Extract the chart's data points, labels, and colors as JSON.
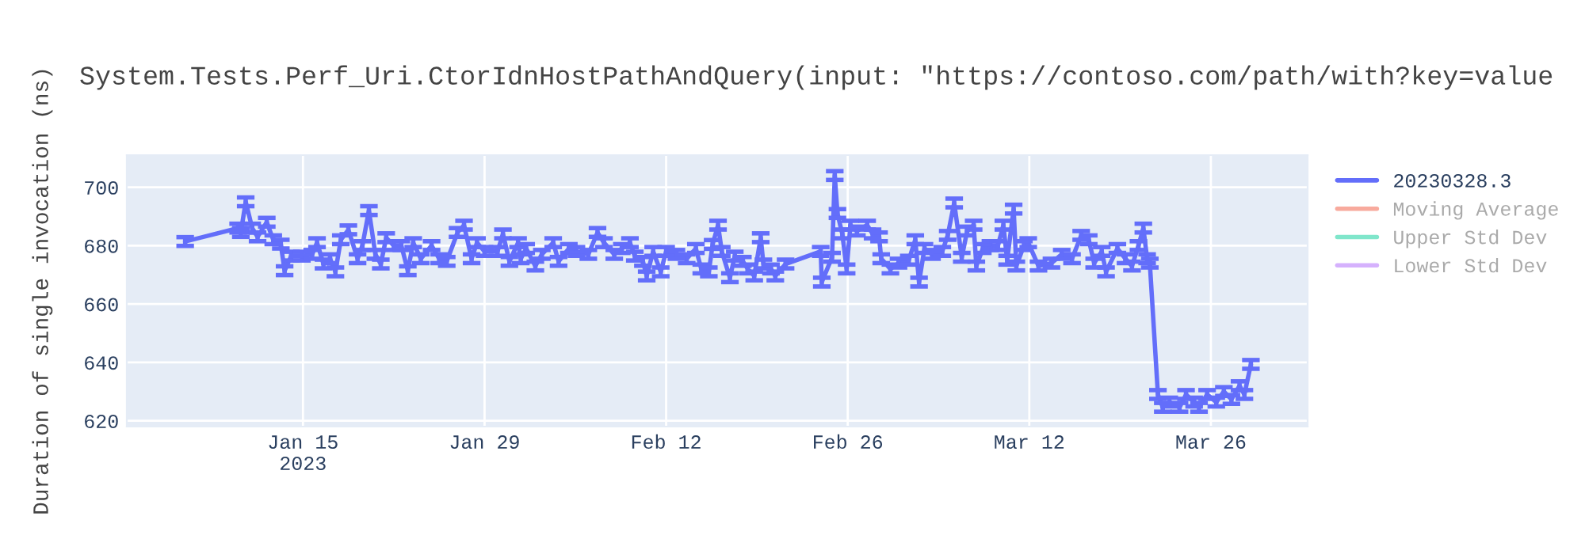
{
  "chart_data": {
    "type": "line",
    "title": "System.Tests.Perf_Uri.CtorIdnHostPathAndQuery(input: \"https://contoso.com/path/with?key=value",
    "ylabel": "Duration of single invocation (ns)",
    "x": [
      "2023-01-05T22:00",
      "2023-01-10T00:00",
      "2023-01-10T05:00",
      "2023-01-10T14:00",
      "2023-01-11T02:00",
      "2023-01-11T12:00",
      "2023-01-12T05:00",
      "2023-01-12T17:00",
      "2023-01-13T07:00",
      "2023-01-13T14:00",
      "2023-01-14T02:00",
      "2023-01-14T22:00",
      "2023-01-15T17:00",
      "2023-01-16T02:00",
      "2023-01-16T14:00",
      "2023-01-17T02:00",
      "2023-01-17T12:00",
      "2023-01-17T22:00",
      "2023-01-18T12:00",
      "2023-01-19T05:00",
      "2023-01-19T14:00",
      "2023-01-20T02:00",
      "2023-01-20T14:00",
      "2023-01-21T00:00",
      "2023-01-21T10:00",
      "2023-01-22T00:00",
      "2023-01-22T14:00",
      "2023-01-23T02:00",
      "2023-01-23T12:00",
      "2023-01-24T02:00",
      "2023-01-24T22:00",
      "2023-01-25T12:00",
      "2023-01-26T02:00",
      "2023-01-26T22:00",
      "2023-01-27T10:00",
      "2023-01-28T00:00",
      "2023-01-28T10:00",
      "2023-01-29T00:00",
      "2023-01-30T00:00",
      "2023-01-30T10:00",
      "2023-01-30T22:00",
      "2023-01-31T14:00",
      "2023-01-31T19:00",
      "2023-02-01T05:00",
      "2023-02-01T22:00",
      "2023-02-02T10:00",
      "2023-02-03T07:00",
      "2023-02-03T17:00",
      "2023-02-04T12:00",
      "2023-02-05T02:00",
      "2023-02-06T00:00",
      "2023-02-06T17:00",
      "2023-02-07T05:00",
      "2023-02-08T00:00",
      "2023-02-08T14:00",
      "2023-02-09T05:00",
      "2023-02-09T14:00",
      "2023-02-10T05:00",
      "2023-02-10T12:00",
      "2023-02-11T00:00",
      "2023-02-11T14:00",
      "2023-02-12T00:00",
      "2023-02-12T19:00",
      "2023-02-13T14:00",
      "2023-02-14T07:00",
      "2023-02-14T17:00",
      "2023-02-15T07:00",
      "2023-02-15T14:00",
      "2023-02-16T00:00",
      "2023-02-16T07:00",
      "2023-02-16T22:00",
      "2023-02-17T07:00",
      "2023-02-17T22:00",
      "2023-02-18T07:00",
      "2023-02-18T19:00",
      "2023-02-19T07:00",
      "2023-02-19T12:00",
      "2023-02-20T02:00",
      "2023-02-20T10:00",
      "2023-02-21T05:00",
      "2023-02-23T22:00",
      "2023-02-24T00:00",
      "2023-02-24T19:00",
      "2023-02-25T00:00",
      "2023-02-25T05:00",
      "2023-02-25T14:00",
      "2023-02-25T22:00",
      "2023-02-26T05:00",
      "2023-02-26T17:00",
      "2023-02-27T12:00",
      "2023-02-27T22:00",
      "2023-02-28T10:00",
      "2023-02-28T14:00",
      "2023-03-01T07:00",
      "2023-03-01T22:00",
      "2023-03-02T17:00",
      "2023-03-03T05:00",
      "2023-03-03T12:00",
      "2023-03-03T22:00",
      "2023-03-04T12:00",
      "2023-03-05T07:00",
      "2023-03-05T17:00",
      "2023-03-06T05:00",
      "2023-03-06T19:00",
      "2023-03-07T05:00",
      "2023-03-07T17:00",
      "2023-03-07T22:00",
      "2023-03-08T10:00",
      "2023-03-09T00:00",
      "2023-03-09T14:00",
      "2023-03-10T00:00",
      "2023-03-10T07:00",
      "2023-03-10T19:00",
      "2023-03-11T00:00",
      "2023-03-11T14:00",
      "2023-03-11T22:00",
      "2023-03-12T17:00",
      "2023-03-13T17:00",
      "2023-03-14T12:00",
      "2023-03-15T07:00",
      "2023-03-16T00:00",
      "2023-03-16T14:00",
      "2023-03-17T00:00",
      "2023-03-17T14:00",
      "2023-03-17T22:00",
      "2023-03-18T19:00",
      "2023-03-19T10:00",
      "2023-03-19T22:00",
      "2023-03-20T10:00",
      "2023-03-20T19:00",
      "2023-03-21T02:00",
      "2023-03-21T07:00",
      "2023-03-21T22:00",
      "2023-03-22T07:00",
      "2023-03-22T19:00",
      "2023-03-23T14:00",
      "2023-03-24T02:00",
      "2023-03-24T17:00",
      "2023-03-25T02:00",
      "2023-03-25T17:00",
      "2023-03-26T10:00",
      "2023-03-27T00:00",
      "2023-03-27T14:00",
      "2023-03-28T05:00",
      "2023-03-28T14:00",
      "2023-03-29T02:00"
    ],
    "series": [
      {
        "name": "20230328.3",
        "color": "#636efa",
        "values": [
          681.4,
          686,
          684.5,
          695,
          686,
          683,
          688,
          682,
          680.5,
          671.4,
          676.4,
          676.4,
          677,
          681,
          673.7,
          675.5,
          671,
          682,
          685.4,
          675.5,
          680,
          692,
          677,
          673.7,
          682.7,
          680,
          680,
          671.4,
          681,
          675.5,
          680,
          675.5,
          674.6,
          684.5,
          687,
          675.5,
          681,
          678,
          678,
          684,
          674.6,
          681,
          675.5,
          679,
          673,
          677,
          681,
          674.6,
          679,
          678,
          677,
          684.5,
          681,
          677,
          679,
          681,
          676.4,
          674.6,
          669.6,
          678,
          671,
          678,
          677,
          675.5,
          679,
          672,
          671,
          680.4,
          687,
          678,
          669,
          676.4,
          674.6,
          672,
          669.6,
          682.7,
          673.7,
          672,
          669.6,
          673.7,
          678,
          667.5,
          676,
          704,
          691,
          684,
          672,
          687,
          685,
          687,
          684,
          683,
          675.5,
          672,
          674,
          675,
          682,
          667.5,
          679,
          677,
          678,
          683.5,
          694.6,
          676,
          685,
          687,
          673,
          679,
          680,
          680,
          687,
          675,
          692.5,
          673,
          680,
          681,
          673,
          674,
          677,
          675.5,
          683.5,
          682,
          674,
          678,
          671,
          679,
          675.5,
          673,
          680,
          686,
          675.5,
          674,
          629,
          624.6,
          626.4,
          624.6,
          629,
          626.4,
          624.6,
          629,
          626.4,
          630,
          627.3,
          632,
          629,
          639.3
        ],
        "errors": [
          1.5,
          1.5,
          1.5,
          1.5,
          1.5,
          1.5,
          1.5,
          1.5,
          1.5,
          1.5,
          1.5,
          1.5,
          1.5,
          1.5,
          1.5,
          1.5,
          1.5,
          1.5,
          1.5,
          1.5,
          1.5,
          1.5,
          1.5,
          1.5,
          1.5,
          1.5,
          1.5,
          1.5,
          1.5,
          1.5,
          1.5,
          1.5,
          1.5,
          1.5,
          1.5,
          1.5,
          1.5,
          1.5,
          1.5,
          1.5,
          1.5,
          1.5,
          1.5,
          1.5,
          1.5,
          1.5,
          1.5,
          1.5,
          1.5,
          1.5,
          1.5,
          1.5,
          1.5,
          1.5,
          1.5,
          1.5,
          1.5,
          1.5,
          1.5,
          1.5,
          1.5,
          1.5,
          1.5,
          1.5,
          1.5,
          1.5,
          1.5,
          1.5,
          1.5,
          1.5,
          1.5,
          1.5,
          1.5,
          1.5,
          1.5,
          1.5,
          1.5,
          1.5,
          1.5,
          1.5,
          1.5,
          1.5,
          1.5,
          1.5,
          1.5,
          1.5,
          1.5,
          1.5,
          1.5,
          1.5,
          1.5,
          1.5,
          1.5,
          1.5,
          1.5,
          1.5,
          1.5,
          1.5,
          1.5,
          1.5,
          1.5,
          1.5,
          1.5,
          1.5,
          1.5,
          1.5,
          1.5,
          1.5,
          1.5,
          1.5,
          1.5,
          1.5,
          1.5,
          1.5,
          1.5,
          1.5,
          1.5,
          1.5,
          1.5,
          1.5,
          1.5,
          1.5,
          1.5,
          1.5,
          1.5,
          1.5,
          1.5,
          1.5,
          1.5,
          1.5,
          1.5,
          1.5,
          1.5,
          1.5,
          1.5,
          1.5,
          1.5,
          1.5,
          1.5,
          1.5,
          1.5,
          1.5,
          1.5,
          1.5,
          1.5,
          1.5
        ]
      },
      {
        "name": "Moving Average",
        "color": "#f8aa9d",
        "values": [
          null,
          null,
          null,
          null,
          null,
          null,
          null,
          null,
          null,
          null,
          null,
          null,
          null,
          null,
          null,
          null,
          null,
          null,
          null,
          null,
          null,
          null,
          null,
          null,
          null,
          null,
          null,
          null,
          null,
          null,
          null,
          null,
          null,
          null,
          null,
          null,
          null,
          null,
          null,
          null,
          null,
          null,
          null,
          null,
          null,
          null,
          null,
          null,
          null,
          null,
          null,
          null,
          null,
          null,
          null,
          null,
          null,
          null,
          null,
          null,
          null,
          null,
          null,
          null,
          null,
          null,
          null,
          null,
          null,
          null,
          null,
          null,
          null,
          null,
          null,
          null,
          null,
          null,
          null,
          null,
          null,
          null,
          null,
          null,
          null,
          null,
          null,
          null,
          null,
          null,
          null,
          null,
          null,
          null,
          null,
          null,
          null,
          null,
          null,
          null,
          null,
          null,
          null,
          null,
          null,
          null,
          null,
          null,
          null,
          null,
          null,
          null,
          null,
          null,
          null,
          null,
          null,
          null,
          null,
          null,
          null,
          null,
          null,
          null,
          null,
          null,
          null,
          null,
          null,
          null,
          null,
          null,
          null,
          null,
          null,
          null,
          null,
          null,
          null,
          null,
          null,
          null,
          null,
          null,
          null,
          null
        ]
      },
      {
        "name": "Upper Std Dev",
        "color": "#80e6cb",
        "values": [
          null,
          null,
          null,
          null,
          null,
          null,
          null,
          null,
          null,
          null,
          null,
          null,
          null,
          null,
          null,
          null,
          null,
          null,
          null,
          null,
          null,
          null,
          null,
          null,
          null,
          null,
          null,
          null,
          null,
          null,
          null,
          null,
          null,
          null,
          null,
          null,
          null,
          null,
          null,
          null,
          null,
          null,
          null,
          null,
          null,
          null,
          null,
          null,
          null,
          null,
          null,
          null,
          null,
          null,
          null,
          null,
          null,
          null,
          null,
          null,
          null,
          null,
          null,
          null,
          null,
          null,
          null,
          null,
          null,
          null,
          null,
          null,
          null,
          null,
          null,
          null,
          null,
          null,
          null,
          null,
          null,
          null,
          null,
          null,
          null,
          null,
          null,
          null,
          null,
          null,
          null,
          null,
          null,
          null,
          null,
          null,
          null,
          null,
          null,
          null,
          null,
          null,
          null,
          null,
          null,
          null,
          null,
          null,
          null,
          null,
          null,
          null,
          null,
          null,
          null,
          null,
          null,
          null,
          null,
          null,
          null,
          null,
          null,
          null,
          null,
          null,
          null,
          null,
          null,
          null,
          null,
          null,
          null,
          null,
          null,
          null,
          null,
          null,
          null,
          null,
          null,
          null,
          null,
          null,
          null,
          null
        ]
      },
      {
        "name": "Lower Std Dev",
        "color": "#d5b1fd",
        "values": [
          null,
          null,
          null,
          null,
          null,
          null,
          null,
          null,
          null,
          null,
          null,
          null,
          null,
          null,
          null,
          null,
          null,
          null,
          null,
          null,
          null,
          null,
          null,
          null,
          null,
          null,
          null,
          null,
          null,
          null,
          null,
          null,
          null,
          null,
          null,
          null,
          null,
          null,
          null,
          null,
          null,
          null,
          null,
          null,
          null,
          null,
          null,
          null,
          null,
          null,
          null,
          null,
          null,
          null,
          null,
          null,
          null,
          null,
          null,
          null,
          null,
          null,
          null,
          null,
          null,
          null,
          null,
          null,
          null,
          null,
          null,
          null,
          null,
          null,
          null,
          null,
          null,
          null,
          null,
          null,
          null,
          null,
          null,
          null,
          null,
          null,
          null,
          null,
          null,
          null,
          null,
          null,
          null,
          null,
          null,
          null,
          null,
          null,
          null,
          null,
          null,
          null,
          null,
          null,
          null,
          null,
          null,
          null,
          null,
          null,
          null,
          null,
          null,
          null,
          null,
          null,
          null,
          null,
          null,
          null,
          null,
          null,
          null,
          null,
          null,
          null,
          null,
          null,
          null,
          null,
          null,
          null,
          null,
          null,
          null,
          null,
          null,
          null,
          null,
          null,
          null,
          null,
          null,
          null,
          null,
          null
        ]
      }
    ],
    "xlim": [
      "2023-01-01T10:00",
      "2023-04-02T11:00"
    ],
    "xticks": [
      {
        "value": "2023-01-15",
        "label": "Jan 15\n2023"
      },
      {
        "value": "2023-01-29",
        "label": "Jan 29"
      },
      {
        "value": "2023-02-12",
        "label": "Feb 12"
      },
      {
        "value": "2023-02-26",
        "label": "Feb 26"
      },
      {
        "value": "2023-03-12",
        "label": "Mar 12"
      },
      {
        "value": "2023-03-26",
        "label": "Mar 26"
      }
    ],
    "ylim": [
      618,
      711
    ],
    "yticks": [
      620,
      640,
      660,
      680,
      700
    ],
    "grid": true,
    "legend": "right",
    "marker": "none",
    "line_style": "solid"
  }
}
